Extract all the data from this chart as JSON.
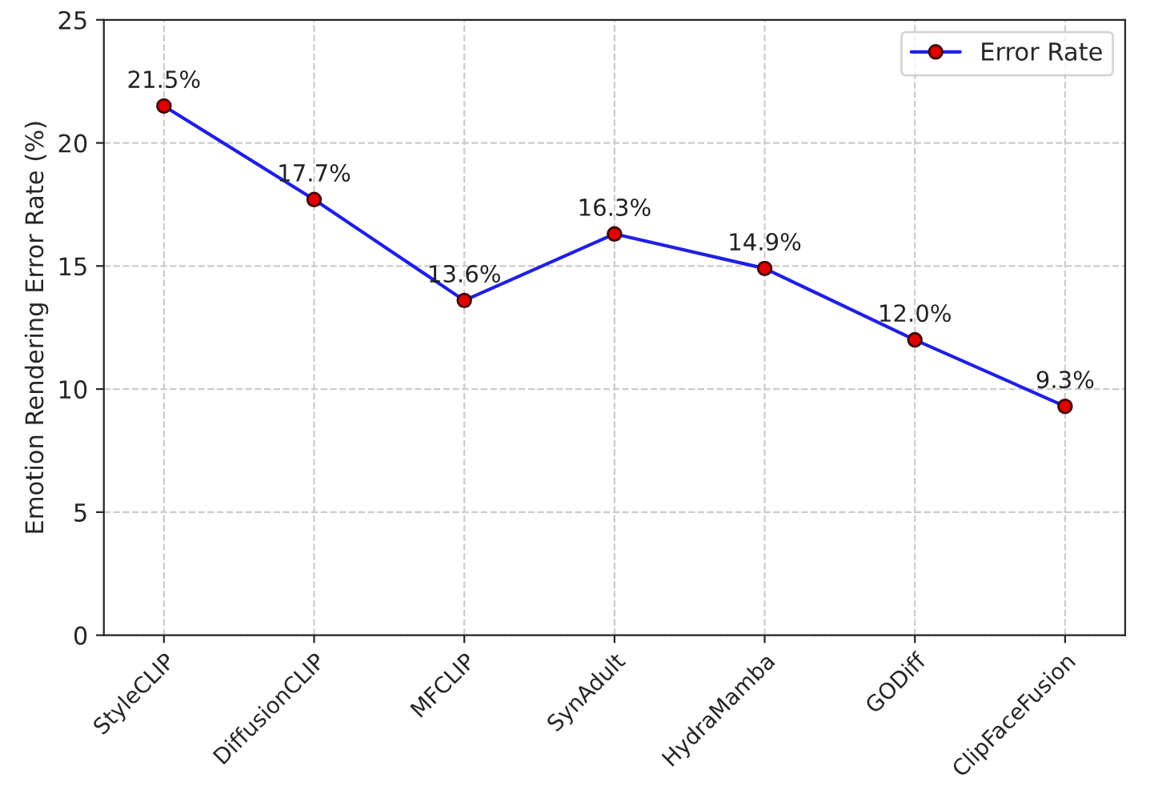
{
  "chart_data": {
    "type": "line",
    "ylabel": "Emotion Rendering Error Rate (%)",
    "categories": [
      "StyleCLIP",
      "DiffusionCLIP",
      "MFCLIP",
      "SynAdult",
      "HydraMamba",
      "GODiff",
      "ClipFaceFusion"
    ],
    "series": [
      {
        "name": "Error Rate",
        "color": "#1f1fe6",
        "colors": [
          "#e00000",
          "#e00000",
          "#e00000",
          "#e00000",
          "#e00000",
          "#e00000",
          "#e00000"
        ],
        "values": [
          21.5,
          17.7,
          13.6,
          16.3,
          14.9,
          12.0,
          9.3
        ],
        "value_labels": [
          "21.5%",
          "17.7%",
          "13.6%",
          "16.3%",
          "14.9%",
          "12.0%",
          "9.3%"
        ]
      }
    ],
    "ylim": [
      0,
      25
    ],
    "yticks": [
      0,
      5,
      10,
      15,
      20,
      25
    ],
    "grid": true,
    "legend": "top right",
    "marker": "circle",
    "line_style": "solid"
  }
}
